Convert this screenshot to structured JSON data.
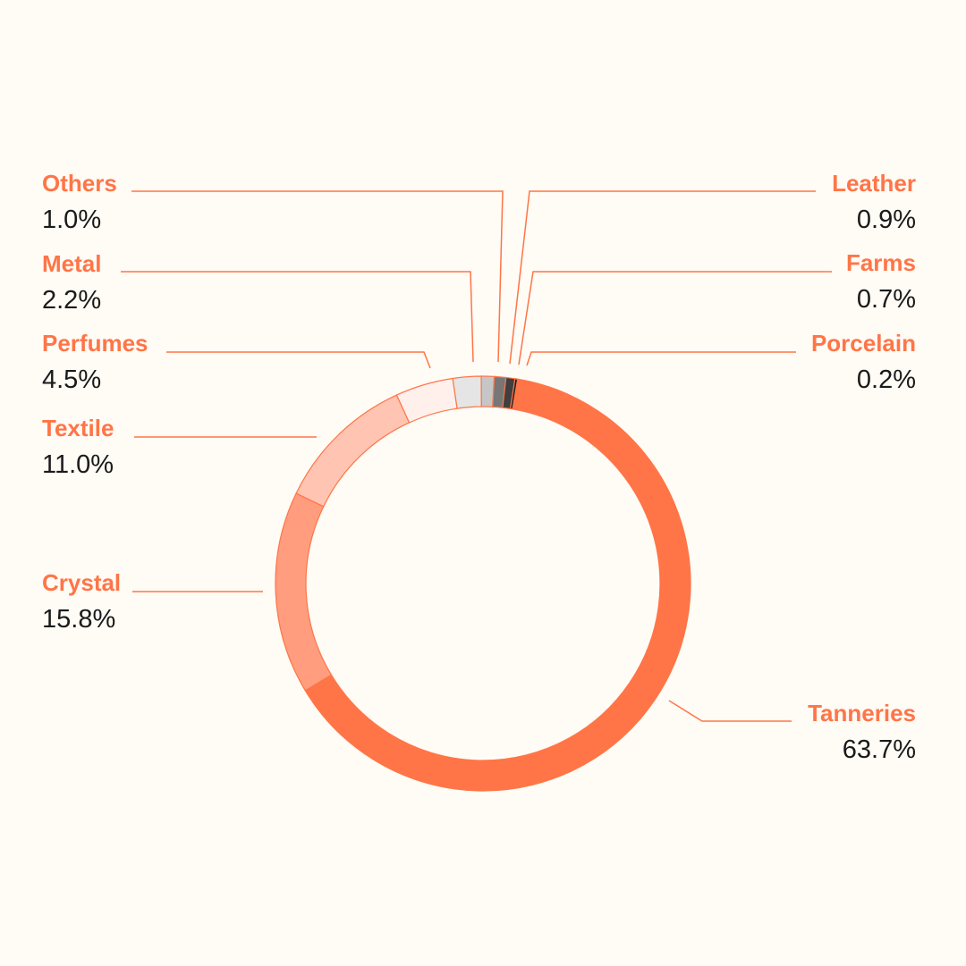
{
  "chart_data": {
    "type": "pie",
    "variant": "donut",
    "legend": "none",
    "grid": false,
    "unit": "%",
    "slices": [
      {
        "name": "Tanneries",
        "value": 63.7,
        "label": "63.7%",
        "color": "#ff7547"
      },
      {
        "name": "Crystal",
        "value": 15.8,
        "label": "15.8%",
        "color": "#ff9d7e"
      },
      {
        "name": "Textile",
        "value": 11.0,
        "label": "11.0%",
        "color": "#ffc4b2"
      },
      {
        "name": "Perfumes",
        "value": 4.5,
        "label": "4.5%",
        "color": "#fff0eb"
      },
      {
        "name": "Metal",
        "value": 2.2,
        "label": "2.2%",
        "color": "#e5e5e5"
      },
      {
        "name": "Others",
        "value": 1.0,
        "label": "1.0%",
        "color": "#c6c6c6"
      },
      {
        "name": "Leather",
        "value": 0.9,
        "label": "0.9%",
        "color": "#777777"
      },
      {
        "name": "Farms",
        "value": 0.7,
        "label": "0.7%",
        "color": "#3f3f3f"
      },
      {
        "name": "Porcelain",
        "value": 0.2,
        "label": "0.2%",
        "color": "#1e1e1e"
      }
    ]
  }
}
